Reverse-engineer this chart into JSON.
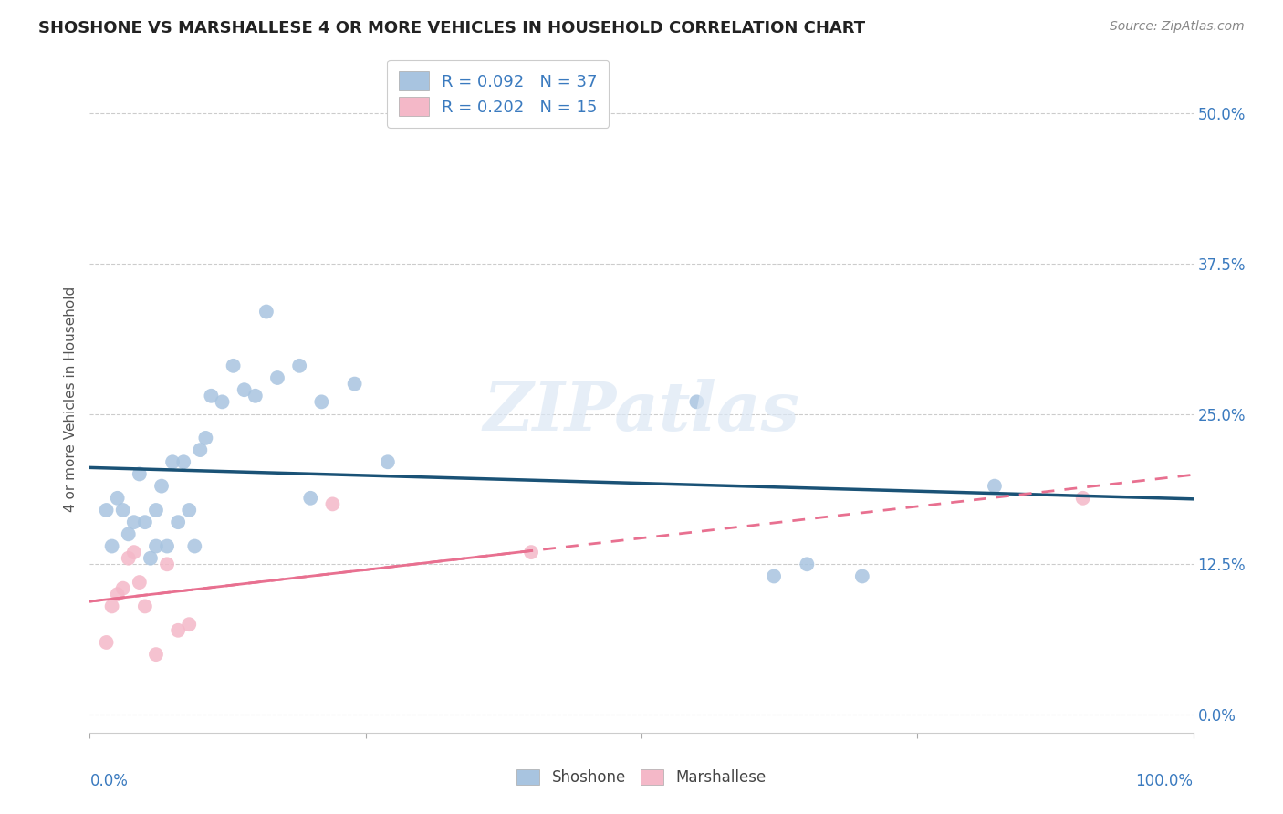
{
  "title": "SHOSHONE VS MARSHALLESE 4 OR MORE VEHICLES IN HOUSEHOLD CORRELATION CHART",
  "source": "Source: ZipAtlas.com",
  "ylabel": "4 or more Vehicles in Household",
  "ytick_values": [
    0.0,
    12.5,
    25.0,
    37.5,
    50.0
  ],
  "xlim": [
    0.0,
    100.0
  ],
  "ylim": [
    -1.5,
    54.0
  ],
  "shoshone_r": "0.092",
  "shoshone_n": "37",
  "marshallese_r": "0.202",
  "marshallese_n": "15",
  "shoshone_color": "#a8c4e0",
  "shoshone_line_color": "#1a5276",
  "marshallese_color": "#f4b8c8",
  "marshallese_line_color": "#e87090",
  "background_color": "#ffffff",
  "grid_color": "#cccccc",
  "watermark": "ZIPatlas",
  "shoshone_x": [
    1.5,
    2.0,
    2.5,
    3.0,
    3.5,
    4.0,
    4.5,
    5.0,
    5.5,
    6.0,
    6.0,
    6.5,
    7.0,
    7.5,
    8.0,
    8.5,
    9.0,
    9.5,
    10.0,
    10.5,
    11.0,
    12.0,
    13.0,
    14.0,
    15.0,
    16.0,
    17.0,
    19.0,
    20.0,
    21.0,
    24.0,
    27.0,
    55.0,
    62.0,
    65.0,
    70.0,
    82.0
  ],
  "shoshone_y": [
    17.0,
    14.0,
    18.0,
    17.0,
    15.0,
    16.0,
    20.0,
    16.0,
    13.0,
    17.0,
    14.0,
    19.0,
    14.0,
    21.0,
    16.0,
    21.0,
    17.0,
    14.0,
    22.0,
    23.0,
    26.5,
    26.0,
    29.0,
    27.0,
    26.5,
    33.5,
    28.0,
    29.0,
    18.0,
    26.0,
    27.5,
    21.0,
    26.0,
    11.5,
    12.5,
    11.5,
    19.0
  ],
  "marshallese_x": [
    1.5,
    2.0,
    2.5,
    3.0,
    3.5,
    4.0,
    4.5,
    5.0,
    6.0,
    7.0,
    8.0,
    9.0,
    22.0,
    40.0,
    90.0
  ],
  "marshallese_y": [
    6.0,
    9.0,
    10.0,
    10.5,
    13.0,
    13.5,
    11.0,
    9.0,
    5.0,
    12.5,
    7.0,
    7.5,
    17.5,
    13.5,
    18.0
  ]
}
